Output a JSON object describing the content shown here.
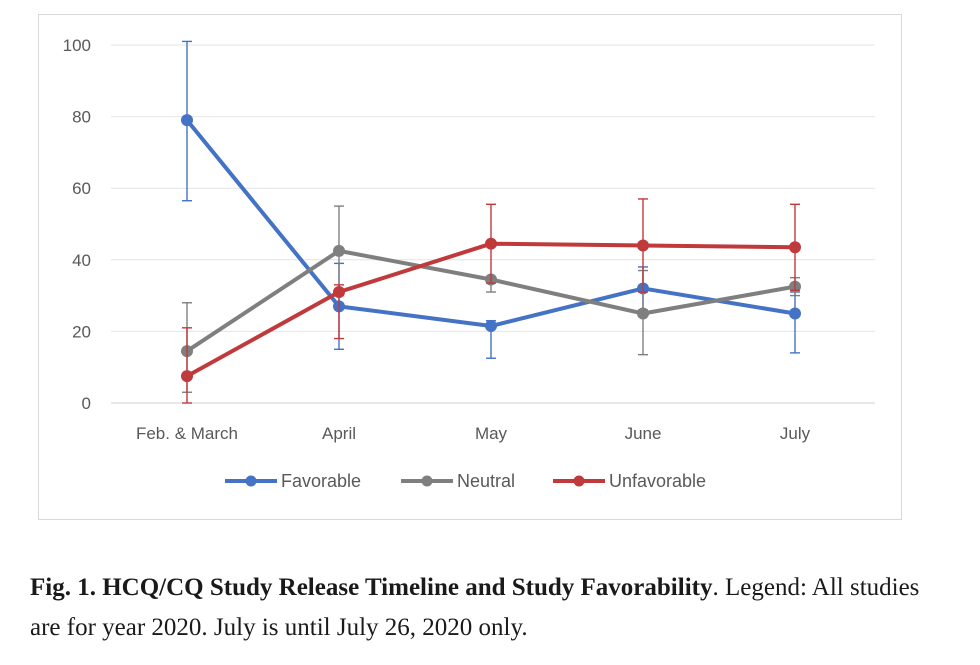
{
  "chart_data": {
    "type": "line",
    "categories": [
      "Feb. & March",
      "April",
      "May",
      "June",
      "July"
    ],
    "ylim": [
      0,
      100
    ],
    "yticks": [
      0,
      20,
      40,
      60,
      80,
      100
    ],
    "grid": true,
    "legend_position": "bottom",
    "series": [
      {
        "name": "Favorable",
        "color": "#4472c4",
        "values": [
          79,
          27,
          21.5,
          32,
          25
        ],
        "err_upper": [
          101,
          39,
          23,
          38,
          31
        ],
        "err_lower": [
          56.5,
          15,
          12.5,
          26,
          14
        ]
      },
      {
        "name": "Neutral",
        "color": "#7f7f7f",
        "values": [
          14.5,
          42.5,
          34.5,
          25,
          32.5
        ],
        "err_upper": [
          28,
          55,
          35,
          37,
          35
        ],
        "err_lower": [
          3,
          30,
          31,
          13.5,
          30
        ]
      },
      {
        "name": "Unfavorable",
        "color": "#c0393b",
        "values": [
          7.5,
          31,
          44.5,
          44,
          43.5
        ],
        "err_upper": [
          21,
          33,
          55.5,
          57,
          55.5
        ],
        "err_lower": [
          0,
          18,
          33.5,
          31,
          31.5
        ]
      }
    ]
  },
  "caption": {
    "bold": "Fig. 1. HCQ/CQ Study Release Timeline and Study Favorability",
    "text": ". Legend: All studies are for year 2020. July is until July 26, 2020 only."
  }
}
